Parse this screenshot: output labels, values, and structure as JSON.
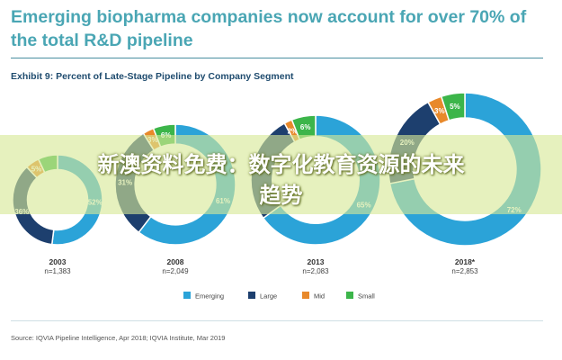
{
  "headline": "Emerging biopharma companies now account for over 70% of the total R&D pipeline",
  "exhibit_title": "Exhibit 9: Percent of Late-Stage Pipeline by Company Segment",
  "source": "Source: IQVIA Pipeline Intelligence, Apr 2018; IQVIA Institute, Mar 2019",
  "overlay": {
    "line1": "新澳资料免费：数字化教育资源的未来",
    "line2": "趋势"
  },
  "chart_data": {
    "type": "pie",
    "donut": true,
    "segments": [
      "Emerging",
      "Large",
      "Mid",
      "Small"
    ],
    "colors": {
      "Emerging": "#2ba3d8",
      "Large": "#1d3f6e",
      "Mid": "#e8892b",
      "Small": "#3cb54a"
    },
    "legend_position": "bottom",
    "charts": [
      {
        "year": "2003",
        "n": "n=1,383",
        "values": {
          "Emerging": 52,
          "Large": 36,
          "Mid": 5,
          "Small": 7
        },
        "labels": {
          "Emerging": "52%",
          "Large": "36%",
          "Mid": "5%",
          "Small": ""
        }
      },
      {
        "year": "2008",
        "n": "n=2,049",
        "values": {
          "Emerging": 61,
          "Large": 31,
          "Mid": 3,
          "Small": 6
        },
        "labels": {
          "Emerging": "61%",
          "Large": "31%",
          "Mid": "3%",
          "Small": "6%"
        }
      },
      {
        "year": "2013",
        "n": "n=2,083",
        "values": {
          "Emerging": 65,
          "Large": 27,
          "Mid": 2,
          "Small": 6
        },
        "labels": {
          "Emerging": "65%",
          "Large": "",
          "Mid": "2%",
          "Small": "6%"
        }
      },
      {
        "year": "2018*",
        "n": "n=2,853",
        "values": {
          "Emerging": 72,
          "Large": 20,
          "Mid": 3,
          "Small": 5
        },
        "labels": {
          "Emerging": "72%",
          "Large": "20%",
          "Mid": "3%",
          "Small": "5%"
        }
      }
    ]
  }
}
